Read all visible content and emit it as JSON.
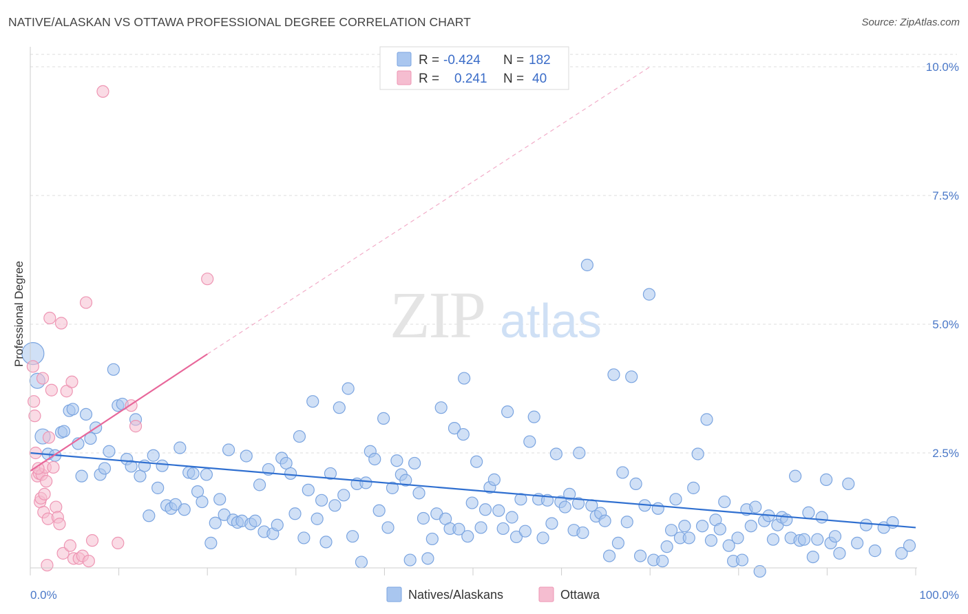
{
  "title": "NATIVE/ALASKAN VS OTTAWA PROFESSIONAL DEGREE CORRELATION CHART",
  "source": "Source: ZipAtlas.com",
  "watermark": {
    "zip": "ZIP",
    "atlas": "atlas"
  },
  "colors": {
    "blue_fill": "#a9c6ef",
    "blue_stroke": "#7aa4e0",
    "blue_line": "#2f6fd0",
    "pink_fill": "#f5bdd0",
    "pink_stroke": "#ee95b3",
    "pink_line": "#e8679a",
    "grid": "#dddddd",
    "label": "#4a78c8"
  },
  "legend": {
    "rows": [
      {
        "r_label": "R =",
        "r_value": "-0.424",
        "n_label": "N =",
        "n_value": "182"
      },
      {
        "r_label": "R =",
        "r_value": "0.241",
        "n_label": "N =",
        "n_value": "40"
      }
    ]
  },
  "chart_data": {
    "type": "scatter",
    "title": "NATIVE/ALASKAN VS OTTAWA PROFESSIONAL DEGREE CORRELATION CHART",
    "xlabel": "",
    "ylabel": "Professional Degree",
    "xlim": [
      0,
      100
    ],
    "ylim": [
      0,
      10.5
    ],
    "x_ticks_labels": [
      "0.0%",
      "100.0%"
    ],
    "y_ticks": [
      2.5,
      5.0,
      7.5,
      10.0
    ],
    "y_ticks_labels": [
      "2.5%",
      "5.0%",
      "7.5%",
      "10.0%"
    ],
    "grid": true,
    "legend_position": "top-center",
    "series": [
      {
        "name": "Natives/Alaskans",
        "r": -0.424,
        "n": 182,
        "trend": {
          "x0": 0,
          "y0": 2.5,
          "x1": 100,
          "y1": 1.05
        },
        "points": [
          [
            0.3,
            4.43
          ],
          [
            0.8,
            3.9
          ],
          [
            1.4,
            2.82
          ],
          [
            2.0,
            2.48
          ],
          [
            2.8,
            2.45
          ],
          [
            3.5,
            2.9
          ],
          [
            3.8,
            2.92
          ],
          [
            4.4,
            3.32
          ],
          [
            4.8,
            3.35
          ],
          [
            5.4,
            2.68
          ],
          [
            5.8,
            2.05
          ],
          [
            6.3,
            3.25
          ],
          [
            6.8,
            2.78
          ],
          [
            7.4,
            2.99
          ],
          [
            7.9,
            2.08
          ],
          [
            8.4,
            2.2
          ],
          [
            8.9,
            2.53
          ],
          [
            9.4,
            4.12
          ],
          [
            9.9,
            3.42
          ],
          [
            10.4,
            3.45
          ],
          [
            10.9,
            2.38
          ],
          [
            11.4,
            2.24
          ],
          [
            11.9,
            3.15
          ],
          [
            12.4,
            2.05
          ],
          [
            12.9,
            2.25
          ],
          [
            13.4,
            1.28
          ],
          [
            13.9,
            2.45
          ],
          [
            14.4,
            1.82
          ],
          [
            14.9,
            2.25
          ],
          [
            15.4,
            1.48
          ],
          [
            15.9,
            1.42
          ],
          [
            16.4,
            1.5
          ],
          [
            16.9,
            2.6
          ],
          [
            17.4,
            1.4
          ],
          [
            17.9,
            2.12
          ],
          [
            18.4,
            2.1
          ],
          [
            18.9,
            1.75
          ],
          [
            19.4,
            1.55
          ],
          [
            19.9,
            2.08
          ],
          [
            20.4,
            0.75
          ],
          [
            20.9,
            1.14
          ],
          [
            21.4,
            1.6
          ],
          [
            21.9,
            1.3
          ],
          [
            22.4,
            2.56
          ],
          [
            22.9,
            1.2
          ],
          [
            23.4,
            1.15
          ],
          [
            23.9,
            1.18
          ],
          [
            24.4,
            2.44
          ],
          [
            24.9,
            1.12
          ],
          [
            25.4,
            1.18
          ],
          [
            25.9,
            1.88
          ],
          [
            26.4,
            0.97
          ],
          [
            26.9,
            2.18
          ],
          [
            27.4,
            0.93
          ],
          [
            27.9,
            1.1
          ],
          [
            28.4,
            2.4
          ],
          [
            28.9,
            2.3
          ],
          [
            29.4,
            2.1
          ],
          [
            29.9,
            1.32
          ],
          [
            30.4,
            2.82
          ],
          [
            30.9,
            0.85
          ],
          [
            31.4,
            1.78
          ],
          [
            31.9,
            3.5
          ],
          [
            32.4,
            1.22
          ],
          [
            32.9,
            1.58
          ],
          [
            33.4,
            0.77
          ],
          [
            33.9,
            2.1
          ],
          [
            34.4,
            1.48
          ],
          [
            34.9,
            3.38
          ],
          [
            35.4,
            1.68
          ],
          [
            35.9,
            3.75
          ],
          [
            36.4,
            0.88
          ],
          [
            36.9,
            1.9
          ],
          [
            37.4,
            0.38
          ],
          [
            37.9,
            1.92
          ],
          [
            38.4,
            2.53
          ],
          [
            38.9,
            2.38
          ],
          [
            39.4,
            1.38
          ],
          [
            39.9,
            3.17
          ],
          [
            40.4,
            1.05
          ],
          [
            40.9,
            1.82
          ],
          [
            41.4,
            2.35
          ],
          [
            41.9,
            2.08
          ],
          [
            42.4,
            1.97
          ],
          [
            42.9,
            0.42
          ],
          [
            43.4,
            2.3
          ],
          [
            43.9,
            1.72
          ],
          [
            44.4,
            1.23
          ],
          [
            44.9,
            0.45
          ],
          [
            45.4,
            0.83
          ],
          [
            45.9,
            1.32
          ],
          [
            46.4,
            3.38
          ],
          [
            46.9,
            1.22
          ],
          [
            47.4,
            1.03
          ],
          [
            47.9,
            2.98
          ],
          [
            48.4,
            1.02
          ],
          [
            48.9,
            2.86
          ],
          [
            49.4,
            0.88
          ],
          [
            49.9,
            1.53
          ],
          [
            50.4,
            2.33
          ],
          [
            50.9,
            1.05
          ],
          [
            51.4,
            1.4
          ],
          [
            51.9,
            1.83
          ],
          [
            52.4,
            1.98
          ],
          [
            52.9,
            1.38
          ],
          [
            53.4,
            1.03
          ],
          [
            53.9,
            3.3
          ],
          [
            54.4,
            1.25
          ],
          [
            54.9,
            0.87
          ],
          [
            55.4,
            1.6
          ],
          [
            55.9,
            0.98
          ],
          [
            56.4,
            2.72
          ],
          [
            56.9,
            3.2
          ],
          [
            57.4,
            1.6
          ],
          [
            57.9,
            0.85
          ],
          [
            58.4,
            1.58
          ],
          [
            58.9,
            1.13
          ],
          [
            59.4,
            2.48
          ],
          [
            59.9,
            1.55
          ],
          [
            60.4,
            1.45
          ],
          [
            60.9,
            1.7
          ],
          [
            61.4,
            1.0
          ],
          [
            61.9,
            1.52
          ],
          [
            62.4,
            0.95
          ],
          [
            62.9,
            6.15
          ],
          [
            63.4,
            1.48
          ],
          [
            63.9,
            1.27
          ],
          [
            64.4,
            1.33
          ],
          [
            64.9,
            1.18
          ],
          [
            65.4,
            0.5
          ],
          [
            65.9,
            4.02
          ],
          [
            66.4,
            0.75
          ],
          [
            66.9,
            2.12
          ],
          [
            67.4,
            1.16
          ],
          [
            67.9,
            3.98
          ],
          [
            68.4,
            1.9
          ],
          [
            68.9,
            0.5
          ],
          [
            69.4,
            1.48
          ],
          [
            69.9,
            5.58
          ],
          [
            70.4,
            0.42
          ],
          [
            70.9,
            1.42
          ],
          [
            71.4,
            0.4
          ],
          [
            71.9,
            0.68
          ],
          [
            72.4,
            1.0
          ],
          [
            72.9,
            1.6
          ],
          [
            73.4,
            0.85
          ],
          [
            73.9,
            1.08
          ],
          [
            74.4,
            0.85
          ],
          [
            74.9,
            1.82
          ],
          [
            75.4,
            2.48
          ],
          [
            75.9,
            1.08
          ],
          [
            76.4,
            3.15
          ],
          [
            76.9,
            0.8
          ],
          [
            77.4,
            1.2
          ],
          [
            77.9,
            1.02
          ],
          [
            78.4,
            1.55
          ],
          [
            78.9,
            0.7
          ],
          [
            79.4,
            0.4
          ],
          [
            79.9,
            0.85
          ],
          [
            80.4,
            0.42
          ],
          [
            80.9,
            1.4
          ],
          [
            81.4,
            1.08
          ],
          [
            81.9,
            1.45
          ],
          [
            82.4,
            0.2
          ],
          [
            82.9,
            1.18
          ],
          [
            83.4,
            1.28
          ],
          [
            83.9,
            0.82
          ],
          [
            84.4,
            1.1
          ],
          [
            84.9,
            1.25
          ],
          [
            85.4,
            1.2
          ],
          [
            85.9,
            0.85
          ],
          [
            86.4,
            2.05
          ],
          [
            86.9,
            0.8
          ],
          [
            87.4,
            0.82
          ],
          [
            87.9,
            1.34
          ],
          [
            88.4,
            0.48
          ],
          [
            88.9,
            0.82
          ],
          [
            89.4,
            1.25
          ],
          [
            89.9,
            1.98
          ],
          [
            90.4,
            0.75
          ],
          [
            90.9,
            0.88
          ],
          [
            91.4,
            0.55
          ],
          [
            92.4,
            1.9
          ],
          [
            93.4,
            0.75
          ],
          [
            94.4,
            1.1
          ],
          [
            95.4,
            0.6
          ],
          [
            96.4,
            1.05
          ],
          [
            97.4,
            1.15
          ],
          [
            98.4,
            0.55
          ],
          [
            99.3,
            0.7
          ],
          [
            49.0,
            3.95
          ],
          [
            62.0,
            2.5
          ]
        ]
      },
      {
        "name": "Ottawa",
        "r": 0.241,
        "n": 40,
        "trend": {
          "x0": 0,
          "y0": 2.15,
          "x1": 20,
          "y1": 4.42,
          "dash_x1": 70,
          "dash_y1": 10.0
        },
        "points": [
          [
            0.3,
            4.18
          ],
          [
            0.4,
            3.5
          ],
          [
            0.5,
            3.22
          ],
          [
            0.6,
            2.5
          ],
          [
            0.8,
            2.05
          ],
          [
            1.0,
            2.1
          ],
          [
            1.1,
            1.55
          ],
          [
            1.2,
            1.62
          ],
          [
            1.3,
            2.08
          ],
          [
            1.5,
            1.35
          ],
          [
            1.6,
            1.7
          ],
          [
            1.7,
            2.22
          ],
          [
            1.8,
            1.95
          ],
          [
            1.9,
            0.32
          ],
          [
            2.0,
            1.22
          ],
          [
            2.1,
            2.8
          ],
          [
            2.2,
            5.12
          ],
          [
            2.4,
            3.72
          ],
          [
            2.6,
            2.22
          ],
          [
            2.9,
            1.45
          ],
          [
            3.1,
            1.25
          ],
          [
            3.3,
            1.12
          ],
          [
            3.5,
            5.02
          ],
          [
            3.7,
            0.55
          ],
          [
            4.1,
            3.7
          ],
          [
            4.5,
            0.7
          ],
          [
            4.7,
            3.88
          ],
          [
            4.9,
            0.45
          ],
          [
            5.5,
            0.45
          ],
          [
            5.9,
            0.5
          ],
          [
            6.3,
            5.42
          ],
          [
            6.6,
            0.4
          ],
          [
            7.0,
            0.8
          ],
          [
            8.2,
            9.52
          ],
          [
            9.9,
            0.75
          ],
          [
            11.4,
            3.42
          ],
          [
            11.9,
            3.02
          ],
          [
            20.0,
            5.88
          ],
          [
            0.9,
            2.2
          ],
          [
            1.4,
            3.95
          ]
        ]
      }
    ]
  },
  "bottom_legend": [
    {
      "label": "Natives/Alaskans"
    },
    {
      "label": "Ottawa"
    }
  ]
}
